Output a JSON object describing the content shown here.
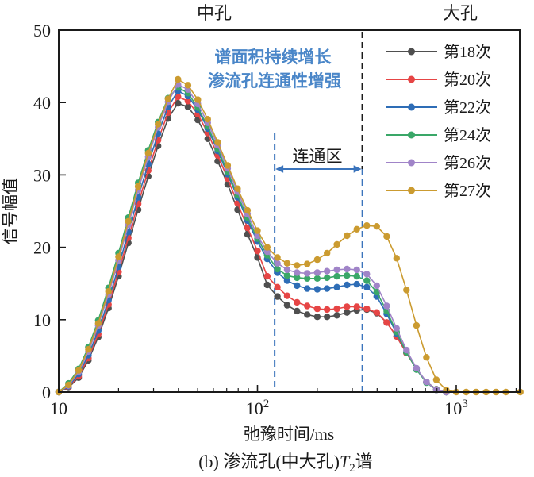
{
  "figure": {
    "labels": {
      "medium_pore": "中孔",
      "large_pore": "大孔",
      "connected_zone": "连通区"
    },
    "annotation": {
      "line1": "谱面积持续增长",
      "line2": "渗流孔连通性增强",
      "color": "#4a86c8"
    },
    "axes": {
      "y_label": "信号幅值",
      "x_label": "弛豫时间/ms",
      "y_ticks": [
        0,
        10,
        20,
        30,
        40,
        50
      ],
      "x_major_ticks": [
        {
          "value": 10,
          "base": "10",
          "exp": ""
        },
        {
          "value": 100,
          "base": "10",
          "exp": "2"
        },
        {
          "value": 1000,
          "base": "10",
          "exp": "3"
        }
      ],
      "x_minor_ticks": [
        20,
        30,
        40,
        50,
        60,
        70,
        80,
        90,
        200,
        300,
        400,
        500,
        600,
        700,
        800,
        900,
        2000
      ]
    },
    "caption": {
      "prefix": "(b) 渗流孔(中大孔)",
      "symbol": "T",
      "subscript": "2",
      "suffix": "谱"
    },
    "connected_zone": {
      "from_ms": 122,
      "to_ms": 337,
      "arrow_color": "#3b74bc",
      "divider_color": "#1a1a1a"
    }
  },
  "chart_data": {
    "type": "line",
    "title": "(b) 渗流孔(中大孔)T2谱",
    "xlabel": "弛豫时间/ms",
    "ylabel": "信号幅值",
    "x_scale": "log",
    "xlim": [
      10,
      2100
    ],
    "ylim": [
      0,
      50
    ],
    "grid": false,
    "legend_position": "upper right",
    "marker": "circle",
    "x_ms": [
      10,
      11.2,
      12.6,
      14.1,
      15.8,
      17.8,
      20,
      22.4,
      25.1,
      28.2,
      31.6,
      35.5,
      39.8,
      44.7,
      50.1,
      56.2,
      63.1,
      70.8,
      79.4,
      89.1,
      100,
      112,
      126,
      141,
      158,
      178,
      200,
      224,
      251,
      282,
      316,
      355,
      398,
      447,
      501,
      562,
      631,
      708,
      794,
      891,
      1000,
      1122,
      1259,
      1413,
      1585,
      1778,
      2100
    ],
    "series": [
      {
        "name": "第18次",
        "color": "#4f4f4f",
        "values": [
          0,
          0.6,
          2.0,
          4.4,
          7.6,
          11.6,
          16.0,
          20.6,
          25.2,
          29.8,
          34.0,
          37.8,
          39.9,
          39.4,
          37.6,
          35.0,
          31.9,
          28.7,
          25.2,
          21.8,
          18.6,
          14.8,
          13.2,
          12.0,
          11.2,
          10.7,
          10.4,
          10.4,
          10.6,
          11.0,
          11.3,
          11.4,
          10.9,
          9.6,
          7.7,
          5.4,
          3.2,
          1.4,
          0.4,
          0,
          null,
          null,
          null,
          null,
          null,
          null,
          null
        ]
      },
      {
        "name": "第20次",
        "color": "#e64545",
        "values": [
          0,
          0.7,
          2.2,
          4.7,
          8.0,
          12.1,
          16.6,
          21.3,
          26.0,
          30.6,
          34.8,
          38.6,
          40.8,
          40.2,
          38.4,
          35.8,
          32.7,
          29.5,
          26.1,
          22.7,
          19.5,
          16.0,
          14.5,
          13.3,
          12.4,
          11.9,
          11.5,
          11.4,
          11.5,
          11.8,
          11.8,
          11.5,
          11.0,
          9.6,
          7.7,
          5.4,
          3.2,
          1.4,
          0.3,
          0,
          null,
          null,
          null,
          null,
          null,
          null,
          null
        ]
      },
      {
        "name": "第22次",
        "color": "#2e6db6",
        "values": [
          0,
          0.8,
          2.5,
          5.1,
          8.5,
          12.7,
          17.3,
          22.1,
          26.9,
          31.5,
          35.7,
          39.4,
          41.6,
          40.9,
          39.0,
          36.4,
          33.3,
          30.1,
          26.9,
          23.7,
          20.8,
          18.4,
          16.5,
          15.4,
          14.7,
          14.3,
          14.2,
          14.3,
          14.5,
          14.8,
          14.9,
          14.5,
          13.2,
          10.8,
          8.1,
          5.5,
          3.2,
          1.4,
          0.3,
          0,
          null,
          null,
          null,
          null,
          null,
          null,
          null
        ]
      },
      {
        "name": "第24次",
        "color": "#3aa768",
        "values": [
          0,
          1.2,
          3.2,
          6.2,
          9.9,
          14.4,
          19.2,
          24.1,
          28.9,
          33.4,
          37.3,
          40.6,
          42.1,
          41.3,
          39.3,
          36.7,
          33.6,
          30.4,
          27.2,
          24.1,
          21.2,
          18.9,
          17.0,
          16.1,
          15.8,
          15.7,
          15.7,
          15.8,
          16.0,
          16.1,
          16.0,
          15.4,
          13.8,
          11.2,
          8.3,
          5.5,
          3.1,
          1.3,
          0.3,
          0,
          null,
          null,
          null,
          null,
          null,
          null,
          null
        ]
      },
      {
        "name": "第26次",
        "color": "#a084c8",
        "values": [
          0,
          0.9,
          2.8,
          5.6,
          9.2,
          13.5,
          18.2,
          23.1,
          27.9,
          32.5,
          36.6,
          40.1,
          42.5,
          41.8,
          39.8,
          37.2,
          34.1,
          30.9,
          27.7,
          24.6,
          21.6,
          19.4,
          17.8,
          16.9,
          16.5,
          16.4,
          16.5,
          16.7,
          16.9,
          17.0,
          16.9,
          16.3,
          14.7,
          11.9,
          8.8,
          5.8,
          3.3,
          1.4,
          0.3,
          0,
          null,
          null,
          null,
          null,
          null,
          null,
          null
        ]
      },
      {
        "name": "第27次",
        "color": "#cb9b30",
        "values": [
          0,
          1.0,
          3.0,
          5.9,
          9.5,
          13.9,
          18.7,
          23.6,
          28.4,
          33.0,
          37.0,
          40.5,
          43.2,
          42.4,
          40.4,
          37.7,
          34.5,
          31.3,
          28.1,
          25.1,
          22.3,
          20.0,
          18.6,
          17.8,
          17.5,
          17.7,
          18.3,
          19.2,
          20.4,
          21.6,
          22.5,
          23.0,
          22.9,
          21.5,
          18.5,
          14.1,
          9.2,
          4.8,
          1.7,
          0.3,
          0,
          0,
          0,
          0,
          0,
          0,
          0
        ]
      }
    ],
    "annotations": [
      {
        "text": "谱面积持续增长 / 渗流孔连通性增强",
        "color": "#4a86c8"
      },
      {
        "text": "连通区",
        "range_ms": [
          122,
          337
        ]
      },
      {
        "text": "中孔 | 大孔 divider at 337 ms"
      }
    ]
  }
}
